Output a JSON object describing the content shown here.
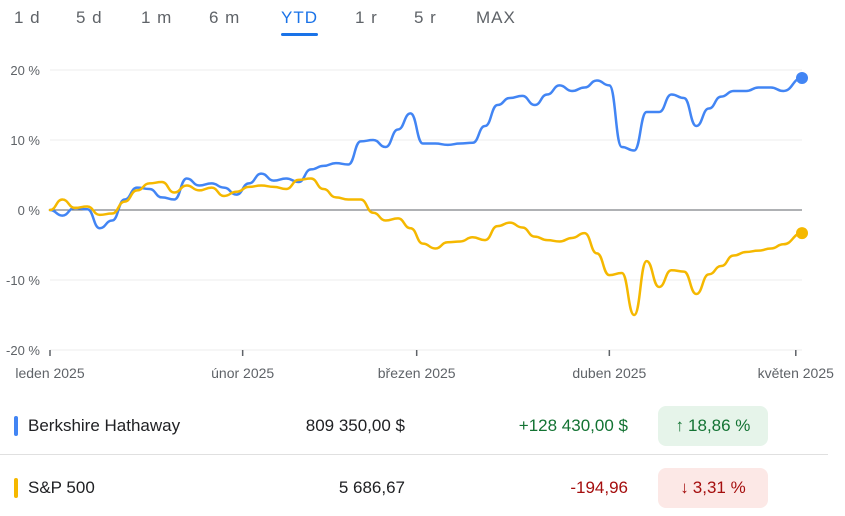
{
  "tabs": [
    {
      "label": "1 d",
      "active": false
    },
    {
      "label": "5 d",
      "active": false
    },
    {
      "label": "1 m",
      "active": false
    },
    {
      "label": "6 m",
      "active": false
    },
    {
      "label": "YTD",
      "active": true
    },
    {
      "label": "1 r",
      "active": false
    },
    {
      "label": "5 r",
      "active": false
    },
    {
      "label": "MAX",
      "active": false
    }
  ],
  "chart_data": {
    "type": "line",
    "y_ticks": [
      {
        "label": "20 %",
        "value": 20
      },
      {
        "label": "10 %",
        "value": 10
      },
      {
        "label": "0 %",
        "value": 0
      },
      {
        "label": "-10 %",
        "value": -10
      },
      {
        "label": "-20 %",
        "value": -20
      }
    ],
    "ylim": [
      -20,
      20
    ],
    "x_ticks": [
      {
        "label": "leden 2025",
        "x": "2025-01-01"
      },
      {
        "label": "únor 2025",
        "x": "2025-02-01"
      },
      {
        "label": "březen 2025",
        "x": "2025-03-01"
      },
      {
        "label": "duben 2025",
        "x": "2025-04-01"
      },
      {
        "label": "květen 2025",
        "x": "2025-05-01"
      }
    ],
    "xlim": [
      "2025-01-01",
      "2025-05-02"
    ],
    "grid": true,
    "series": [
      {
        "name": "Berkshire Hathaway",
        "color": "#4285f4",
        "x": [
          "2025-01-01",
          "2025-01-03",
          "2025-01-05",
          "2025-01-07",
          "2025-01-09",
          "2025-01-11",
          "2025-01-13",
          "2025-01-15",
          "2025-01-17",
          "2025-01-19",
          "2025-01-21",
          "2025-01-23",
          "2025-01-25",
          "2025-01-27",
          "2025-01-29",
          "2025-01-31",
          "2025-02-02",
          "2025-02-04",
          "2025-02-06",
          "2025-02-08",
          "2025-02-10",
          "2025-02-12",
          "2025-02-14",
          "2025-02-16",
          "2025-02-18",
          "2025-02-20",
          "2025-02-22",
          "2025-02-24",
          "2025-02-26",
          "2025-02-28",
          "2025-03-02",
          "2025-03-04",
          "2025-03-06",
          "2025-03-08",
          "2025-03-10",
          "2025-03-12",
          "2025-03-14",
          "2025-03-16",
          "2025-03-18",
          "2025-03-20",
          "2025-03-22",
          "2025-03-24",
          "2025-03-26",
          "2025-03-28",
          "2025-03-30",
          "2025-04-01",
          "2025-04-03",
          "2025-04-05",
          "2025-04-07",
          "2025-04-09",
          "2025-04-11",
          "2025-04-13",
          "2025-04-15",
          "2025-04-17",
          "2025-04-19",
          "2025-04-21",
          "2025-04-23",
          "2025-04-25",
          "2025-04-27",
          "2025-04-29",
          "2025-05-02"
        ],
        "values": [
          0,
          -0.8,
          0.3,
          0.1,
          -2.6,
          -1.5,
          1.5,
          3.2,
          3.0,
          1.8,
          1.5,
          4.5,
          3.5,
          3.8,
          3.2,
          2.2,
          3.8,
          5.2,
          4.2,
          4.5,
          4.0,
          5.8,
          6.3,
          6.7,
          6.5,
          9.8,
          10.0,
          9.0,
          11.5,
          13.8,
          9.5,
          9.5,
          9.3,
          9.5,
          9.6,
          12.0,
          15.0,
          16.0,
          16.3,
          15.0,
          16.5,
          17.8,
          17.0,
          17.5,
          18.5,
          17.8,
          9.0,
          8.5,
          14.0,
          14.0,
          16.5,
          16.0,
          12.0,
          14.5,
          16.2,
          17.0,
          17.0,
          17.5,
          17.5,
          17.0,
          18.86
        ]
      },
      {
        "name": "S&P 500",
        "color": "#f5b800",
        "x": [
          "2025-01-01",
          "2025-01-03",
          "2025-01-05",
          "2025-01-07",
          "2025-01-09",
          "2025-01-11",
          "2025-01-13",
          "2025-01-15",
          "2025-01-17",
          "2025-01-19",
          "2025-01-21",
          "2025-01-23",
          "2025-01-25",
          "2025-01-27",
          "2025-01-29",
          "2025-01-31",
          "2025-02-02",
          "2025-02-04",
          "2025-02-06",
          "2025-02-08",
          "2025-02-10",
          "2025-02-12",
          "2025-02-14",
          "2025-02-16",
          "2025-02-18",
          "2025-02-20",
          "2025-02-22",
          "2025-02-24",
          "2025-02-26",
          "2025-02-28",
          "2025-03-02",
          "2025-03-04",
          "2025-03-06",
          "2025-03-08",
          "2025-03-10",
          "2025-03-12",
          "2025-03-14",
          "2025-03-16",
          "2025-03-18",
          "2025-03-20",
          "2025-03-22",
          "2025-03-24",
          "2025-03-26",
          "2025-03-28",
          "2025-03-30",
          "2025-04-01",
          "2025-04-03",
          "2025-04-05",
          "2025-04-07",
          "2025-04-09",
          "2025-04-11",
          "2025-04-13",
          "2025-04-15",
          "2025-04-17",
          "2025-04-19",
          "2025-04-21",
          "2025-04-23",
          "2025-04-25",
          "2025-04-27",
          "2025-04-29",
          "2025-05-02"
        ],
        "values": [
          0,
          1.5,
          0.3,
          0.5,
          -0.7,
          -0.5,
          1.2,
          2.8,
          3.8,
          4.0,
          2.5,
          3.5,
          2.8,
          3.2,
          2.0,
          2.6,
          3.3,
          3.5,
          3.3,
          3.0,
          4.3,
          4.5,
          3.0,
          1.8,
          1.5,
          1.5,
          -0.4,
          -1.5,
          -1.2,
          -2.6,
          -4.8,
          -5.5,
          -4.6,
          -4.5,
          -3.9,
          -4.3,
          -2.3,
          -1.8,
          -2.5,
          -3.8,
          -4.3,
          -4.5,
          -4.0,
          -3.3,
          -6.2,
          -9.3,
          -9.0,
          -15.0,
          -7.3,
          -11.0,
          -8.6,
          -8.8,
          -12.0,
          -9.2,
          -8.0,
          -6.5,
          -6.0,
          -5.8,
          -5.5,
          -4.9,
          -3.31
        ]
      }
    ]
  },
  "rows": [
    {
      "name": "Berkshire Hathaway",
      "color": "#4285f4",
      "price": "809 350,00 $",
      "change": "+128 430,00 $",
      "percent": "18,86 %",
      "arrow": "↑",
      "direction": "up"
    },
    {
      "name": "S&P 500",
      "color": "#f5b800",
      "price": "5 686,67",
      "change": "-194,96",
      "percent": "3,31 %",
      "arrow": "↓",
      "direction": "down"
    }
  ]
}
